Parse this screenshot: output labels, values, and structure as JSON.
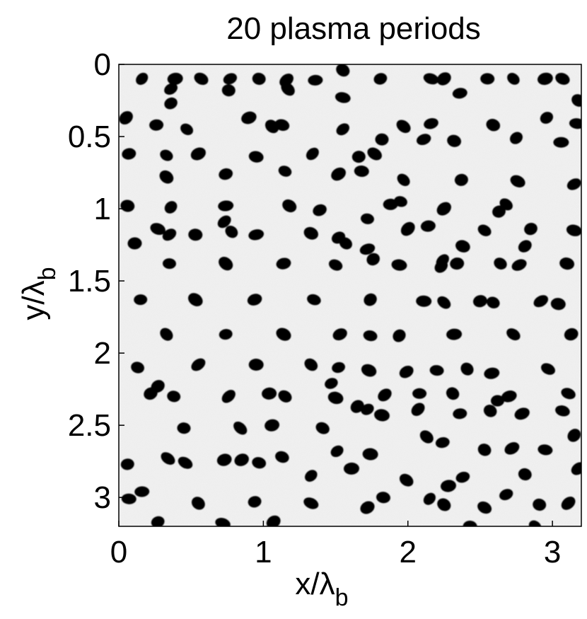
{
  "chart_data": {
    "type": "scatter",
    "title": "20 plasma periods",
    "xlabel": {
      "main": "x/λ",
      "sub": "b"
    },
    "ylabel": {
      "main": "y/λ",
      "sub": "b"
    },
    "xlim": [
      0,
      3.2
    ],
    "ylim": [
      3.2,
      0
    ],
    "y_axis_reversed": true,
    "x_ticks": [
      0,
      1,
      2,
      3
    ],
    "x_tick_labels": [
      "0",
      "1",
      "2",
      "3"
    ],
    "y_ticks": [
      0,
      0.5,
      1,
      1.5,
      2,
      2.5,
      3
    ],
    "y_tick_labels": [
      "0",
      "0.5",
      "1",
      "1.5",
      "2",
      "2.5",
      "3"
    ],
    "grid": false,
    "background_color": "#f1f1f1",
    "marker_color": "#000000",
    "points": [
      [
        0.16,
        0.1
      ],
      [
        0.39,
        0.1
      ],
      [
        0.57,
        0.1
      ],
      [
        0.77,
        0.1
      ],
      [
        0.97,
        0.1
      ],
      [
        1.16,
        0.11
      ],
      [
        1.36,
        0.11
      ],
      [
        1.55,
        0.04
      ],
      [
        1.81,
        0.1
      ],
      [
        2.16,
        0.1
      ],
      [
        2.25,
        0.1
      ],
      [
        2.55,
        0.1
      ],
      [
        2.73,
        0.1
      ],
      [
        2.95,
        0.1
      ],
      [
        3.07,
        0.1
      ],
      [
        0.36,
        0.17
      ],
      [
        0.76,
        0.18
      ],
      [
        1.17,
        0.17
      ],
      [
        2.36,
        0.2
      ],
      [
        3.18,
        0.25
      ],
      [
        0.36,
        0.27
      ],
      [
        1.55,
        0.23
      ],
      [
        0.05,
        0.37
      ],
      [
        0.26,
        0.42
      ],
      [
        0.47,
        0.45
      ],
      [
        0.9,
        0.37
      ],
      [
        1.13,
        0.42
      ],
      [
        1.55,
        0.45
      ],
      [
        1.82,
        0.52
      ],
      [
        1.97,
        0.43
      ],
      [
        2.16,
        0.41
      ],
      [
        2.59,
        0.42
      ],
      [
        2.96,
        0.37
      ],
      [
        3.17,
        0.41
      ],
      [
        1.06,
        0.43
      ],
      [
        0.07,
        0.62
      ],
      [
        0.33,
        0.63
      ],
      [
        0.55,
        0.62
      ],
      [
        0.95,
        0.64
      ],
      [
        1.34,
        0.62
      ],
      [
        1.66,
        0.64
      ],
      [
        1.77,
        0.62
      ],
      [
        2.11,
        0.52
      ],
      [
        2.32,
        0.53
      ],
      [
        2.75,
        0.51
      ],
      [
        3.06,
        0.54
      ],
      [
        0.33,
        0.78
      ],
      [
        0.74,
        0.76
      ],
      [
        1.15,
        0.74
      ],
      [
        1.52,
        0.76
      ],
      [
        1.68,
        0.74
      ],
      [
        1.97,
        0.8
      ],
      [
        2.37,
        0.8
      ],
      [
        2.76,
        0.81
      ],
      [
        3.15,
        0.83
      ],
      [
        0.06,
        0.98
      ],
      [
        0.36,
        0.99
      ],
      [
        0.74,
        0.98
      ],
      [
        1.18,
        0.98
      ],
      [
        1.39,
        1.01
      ],
      [
        1.95,
        0.95
      ],
      [
        2.25,
        1.0
      ],
      [
        1.88,
        0.97
      ],
      [
        2.68,
        0.97
      ],
      [
        2.63,
        1.02
      ],
      [
        0.27,
        1.14
      ],
      [
        0.35,
        1.18
      ],
      [
        0.53,
        1.18
      ],
      [
        0.78,
        1.16
      ],
      [
        0.95,
        1.18
      ],
      [
        1.33,
        1.17
      ],
      [
        1.52,
        1.2
      ],
      [
        1.72,
        1.07
      ],
      [
        2.0,
        1.14
      ],
      [
        2.14,
        1.12
      ],
      [
        2.53,
        1.15
      ],
      [
        2.85,
        1.14
      ],
      [
        3.15,
        1.15
      ],
      [
        0.73,
        1.09
      ],
      [
        0.11,
        1.24
      ],
      [
        1.57,
        1.24
      ],
      [
        1.72,
        1.28
      ],
      [
        2.38,
        1.26
      ],
      [
        2.81,
        1.26
      ],
      [
        0.35,
        1.38
      ],
      [
        0.74,
        1.38
      ],
      [
        1.14,
        1.38
      ],
      [
        1.5,
        1.39
      ],
      [
        1.76,
        1.35
      ],
      [
        1.94,
        1.39
      ],
      [
        2.24,
        1.36
      ],
      [
        2.34,
        1.38
      ],
      [
        2.64,
        1.38
      ],
      [
        2.77,
        1.39
      ],
      [
        3.1,
        1.38
      ],
      [
        2.23,
        1.4
      ],
      [
        0.15,
        1.63
      ],
      [
        0.53,
        1.63
      ],
      [
        0.94,
        1.63
      ],
      [
        1.35,
        1.63
      ],
      [
        1.74,
        1.63
      ],
      [
        2.11,
        1.64
      ],
      [
        2.25,
        1.65
      ],
      [
        2.5,
        1.64
      ],
      [
        2.59,
        1.65
      ],
      [
        2.92,
        1.64
      ],
      [
        3.04,
        1.66
      ],
      [
        0.33,
        1.87
      ],
      [
        0.74,
        1.87
      ],
      [
        1.14,
        1.87
      ],
      [
        1.53,
        1.87
      ],
      [
        1.74,
        1.88
      ],
      [
        1.94,
        1.88
      ],
      [
        2.32,
        1.87
      ],
      [
        2.73,
        1.87
      ],
      [
        3.13,
        1.87
      ],
      [
        0.13,
        2.1
      ],
      [
        0.55,
        2.08
      ],
      [
        0.95,
        2.08
      ],
      [
        1.33,
        2.08
      ],
      [
        1.52,
        2.1
      ],
      [
        1.73,
        2.12
      ],
      [
        1.99,
        2.13
      ],
      [
        2.2,
        2.12
      ],
      [
        2.41,
        2.11
      ],
      [
        2.58,
        2.14
      ],
      [
        2.97,
        2.11
      ],
      [
        0.22,
        2.28
      ],
      [
        0.38,
        2.3
      ],
      [
        0.76,
        2.3
      ],
      [
        1.04,
        2.28
      ],
      [
        1.15,
        2.3
      ],
      [
        1.47,
        2.21
      ],
      [
        1.5,
        2.31
      ],
      [
        1.84,
        2.29
      ],
      [
        2.08,
        2.28
      ],
      [
        2.31,
        2.28
      ],
      [
        2.7,
        2.3
      ],
      [
        3.11,
        2.28
      ],
      [
        0.27,
        2.23
      ],
      [
        0.45,
        2.52
      ],
      [
        0.84,
        2.52
      ],
      [
        1.06,
        2.5
      ],
      [
        1.41,
        2.52
      ],
      [
        1.72,
        2.39
      ],
      [
        1.82,
        2.43
      ],
      [
        2.07,
        2.39
      ],
      [
        2.36,
        2.42
      ],
      [
        2.57,
        2.4
      ],
      [
        2.79,
        2.42
      ],
      [
        3.07,
        2.4
      ],
      [
        1.65,
        2.37
      ],
      [
        2.62,
        2.33
      ],
      [
        0.34,
        2.73
      ],
      [
        0.73,
        2.74
      ],
      [
        1.13,
        2.72
      ],
      [
        1.51,
        2.68
      ],
      [
        1.74,
        2.7
      ],
      [
        2.13,
        2.58
      ],
      [
        2.24,
        2.62
      ],
      [
        2.53,
        2.67
      ],
      [
        2.72,
        2.66
      ],
      [
        2.95,
        2.67
      ],
      [
        3.15,
        2.57
      ],
      [
        0.06,
        2.77
      ],
      [
        0.46,
        2.76
      ],
      [
        0.85,
        2.74
      ],
      [
        0.97,
        2.76
      ],
      [
        1.33,
        2.85
      ],
      [
        1.61,
        2.8
      ],
      [
        1.99,
        2.88
      ],
      [
        2.38,
        2.86
      ],
      [
        2.81,
        2.84
      ],
      [
        3.18,
        2.8
      ],
      [
        0.07,
        3.01
      ],
      [
        0.55,
        3.04
      ],
      [
        0.94,
        3.03
      ],
      [
        1.33,
        3.04
      ],
      [
        1.72,
        3.07
      ],
      [
        1.83,
        3.0
      ],
      [
        2.15,
        3.01
      ],
      [
        2.28,
        2.92
      ],
      [
        2.53,
        3.07
      ],
      [
        2.68,
        2.98
      ],
      [
        2.91,
        3.05
      ],
      [
        3.11,
        3.04
      ],
      [
        0.16,
        2.96
      ],
      [
        2.25,
        3.05
      ],
      [
        0.27,
        3.17
      ],
      [
        0.72,
        3.18
      ],
      [
        1.07,
        3.17
      ],
      [
        2.43,
        3.2
      ],
      [
        2.88,
        3.2
      ]
    ]
  }
}
